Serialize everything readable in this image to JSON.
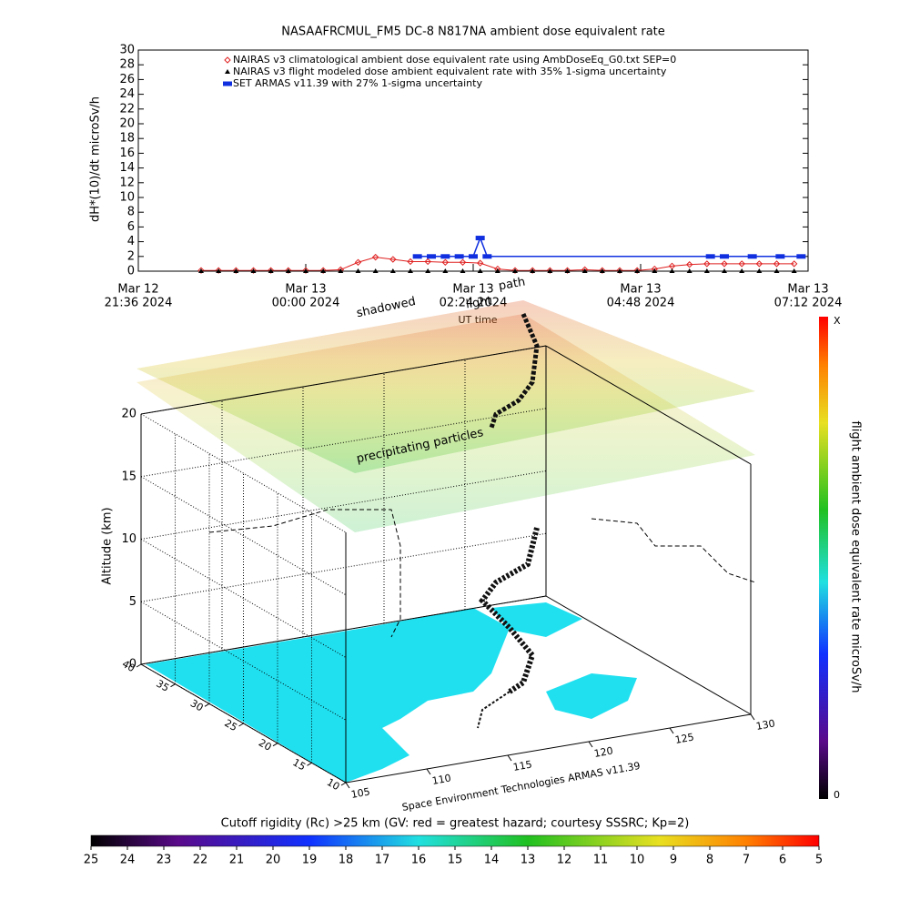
{
  "chart_data": [
    {
      "type": "line",
      "title": "NASAAFRCMUL_FM5 DC-8   N817NA ambient dose equivalent rate",
      "ylabel": "dH*(10)/dt microSv/h",
      "xlabel": "UT time",
      "xlim": [
        "2024-03-12T21:36",
        "2024-03-13T07:12"
      ],
      "xticks": [
        {
          "value": "2024-03-12T21:36",
          "label": [
            "Mar 12",
            "21:36 2024"
          ]
        },
        {
          "value": "2024-03-13T00:00",
          "label": [
            "Mar 13",
            "00:00 2024"
          ]
        },
        {
          "value": "2024-03-13T02:24",
          "label": [
            "Mar 13",
            "02:24 2024"
          ]
        },
        {
          "value": "2024-03-13T04:48",
          "label": [
            "Mar 13",
            "04:48 2024"
          ]
        },
        {
          "value": "2024-03-13T07:12",
          "label": [
            "Mar 13",
            "07:12 2024"
          ]
        }
      ],
      "ylim": [
        0,
        30
      ],
      "yticks": [
        0,
        2,
        4,
        6,
        8,
        10,
        12,
        14,
        16,
        18,
        20,
        22,
        24,
        26,
        28,
        30
      ],
      "x": [
        "2024-03-12T22:30",
        "2024-03-12T22:45",
        "2024-03-12T23:00",
        "2024-03-12T23:15",
        "2024-03-12T23:30",
        "2024-03-12T23:45",
        "2024-03-13T00:00",
        "2024-03-13T00:15",
        "2024-03-13T00:30",
        "2024-03-13T00:45",
        "2024-03-13T01:00",
        "2024-03-13T01:15",
        "2024-03-13T01:30",
        "2024-03-13T01:45",
        "2024-03-13T02:00",
        "2024-03-13T02:15",
        "2024-03-13T02:30",
        "2024-03-13T02:45",
        "2024-03-13T03:00",
        "2024-03-13T03:15",
        "2024-03-13T03:30",
        "2024-03-13T03:45",
        "2024-03-13T04:00",
        "2024-03-13T04:15",
        "2024-03-13T04:30",
        "2024-03-13T04:45",
        "2024-03-13T05:00",
        "2024-03-13T05:15",
        "2024-03-13T05:30",
        "2024-03-13T05:45",
        "2024-03-13T06:00",
        "2024-03-13T06:15",
        "2024-03-13T06:30",
        "2024-03-13T06:45",
        "2024-03-13T07:00"
      ],
      "series": [
        {
          "name": "NAIRAS v3 climatological ambient dose equivalent rate using AmbDoseEq_G0.txt SEP=0",
          "color": "#e02020",
          "marker": "diamond",
          "values": [
            0.1,
            0.1,
            0.1,
            0.1,
            0.1,
            0.1,
            0.1,
            0.1,
            0.2,
            1.2,
            1.9,
            1.6,
            1.3,
            1.3,
            1.2,
            1.2,
            1.1,
            0.3,
            0.1,
            0.1,
            0.1,
            0.1,
            0.2,
            0.1,
            0.1,
            0.1,
            0.3,
            0.7,
            0.9,
            1,
            1,
            1,
            1,
            1,
            1
          ]
        },
        {
          "name": "NAIRAS v3 flight modeled dose ambient equivalent rate with 35% 1-sigma uncertainty",
          "color": "#000000",
          "marker": "triangle",
          "values": [
            0,
            0,
            0,
            0,
            0,
            0,
            0,
            0,
            0,
            0,
            0,
            0,
            0,
            0,
            0,
            0,
            0,
            0,
            0,
            0,
            0,
            0,
            0,
            0,
            0,
            0,
            0,
            0,
            0,
            0,
            0,
            0,
            0,
            0,
            0
          ]
        },
        {
          "name": "SET ARMAS v11.39 with 27% 1-sigma uncertainty",
          "color": "#1030e0",
          "marker": "dot",
          "x": [
            "2024-03-13T01:36",
            "2024-03-13T01:48",
            "2024-03-13T02:00",
            "2024-03-13T02:12",
            "2024-03-13T02:24",
            "2024-03-13T02:30",
            "2024-03-13T02:36",
            "2024-03-13T05:48",
            "2024-03-13T06:00",
            "2024-03-13T06:24",
            "2024-03-13T06:48",
            "2024-03-13T07:06"
          ],
          "values": [
            2,
            2,
            2,
            2,
            2,
            4.5,
            2,
            2,
            2,
            2,
            2,
            2
          ]
        }
      ]
    },
    {
      "type": "surface3d",
      "zlabel": "Altitude (km)",
      "zticks": [
        0,
        5,
        10,
        15,
        20
      ],
      "latticks": [
        10,
        15,
        20,
        25,
        30,
        35,
        40
      ],
      "lonticks": [
        105,
        110,
        115,
        120,
        125,
        130
      ],
      "annotations": [
        "shadowed",
        "path",
        "light",
        "precipitating particles"
      ],
      "credit": "Space Environment Technologies ARMAS v11.39",
      "colorbar": {
        "label": "flight ambient dose equivalent rate microSv/h",
        "ticks": [
          "0",
          "X"
        ]
      }
    },
    {
      "type": "colorbar",
      "title": "Cutoff rigidity (Rc) >25 km (GV: red = greatest hazard; courtesy SSSRC; Kp=2)",
      "ticks": [
        25,
        24,
        23,
        22,
        21,
        20,
        19,
        18,
        17,
        16,
        15,
        14,
        13,
        12,
        11,
        10,
        9,
        8,
        7,
        6,
        5
      ]
    }
  ]
}
